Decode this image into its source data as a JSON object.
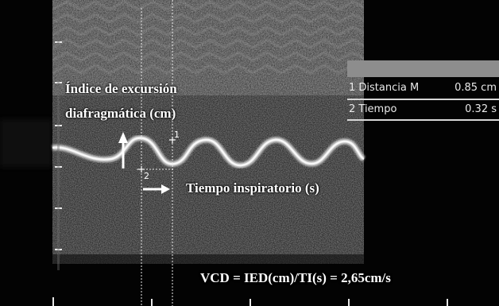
{
  "overlay": {
    "ied_label_line1": "Índice de excursión",
    "ied_label_line2": "diafragmática (cm)",
    "ti_label": "Tiempo inspiratorio (s)",
    "formula": "VCD = IED(cm)/TI(s) = 2,65cm/s"
  },
  "measurements": [
    {
      "label": "1 Distancia M",
      "value": "0.85 cm"
    },
    {
      "label": "2 Tiempo",
      "value": "0.32 s"
    }
  ],
  "markers": [
    "1",
    "2"
  ]
}
